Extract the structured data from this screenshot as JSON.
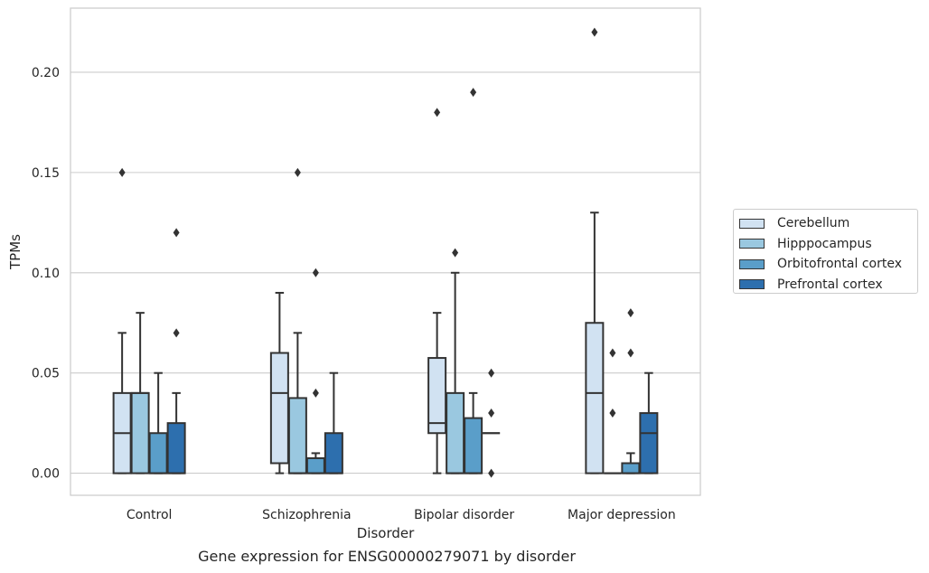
{
  "caption": "Gene expression for ENSG00000279071 by disorder",
  "chart_data": {
    "type": "box",
    "xlabel": "Disorder",
    "ylabel": "TPMs",
    "ylim": [
      -0.011,
      0.232
    ],
    "yticks": [
      "0.00",
      "0.05",
      "0.10",
      "0.15",
      "0.20"
    ],
    "ytick_values": [
      0.0,
      0.05,
      0.1,
      0.15,
      0.2
    ],
    "grid": "horizontal",
    "legend_position": "right",
    "categories": [
      "Control",
      "Schizophrenia",
      "Bipolar disorder",
      "Major depression"
    ],
    "series": [
      {
        "name": "Cerebellum",
        "color": "#d1e2f2",
        "boxes": [
          {
            "whislo": 0.0,
            "q1": 0.0,
            "med": 0.02,
            "q3": 0.04,
            "whishi": 0.07,
            "fliers": [
              0.15
            ]
          },
          {
            "whislo": 0.0,
            "q1": 0.005,
            "med": 0.04,
            "q3": 0.06,
            "whishi": 0.09,
            "fliers": []
          },
          {
            "whislo": 0.0,
            "q1": 0.02,
            "med": 0.025,
            "q3": 0.0575,
            "whishi": 0.08,
            "fliers": [
              0.18
            ]
          },
          {
            "whislo": 0.0,
            "q1": 0.0,
            "med": 0.04,
            "q3": 0.075,
            "whishi": 0.13,
            "fliers": [
              0.22
            ]
          }
        ]
      },
      {
        "name": "Hipppocampus",
        "color": "#9ac8e0",
        "boxes": [
          {
            "whislo": 0.0,
            "q1": 0.0,
            "med": 0.04,
            "q3": 0.04,
            "whishi": 0.08,
            "fliers": []
          },
          {
            "whislo": 0.0,
            "q1": 0.0,
            "med": 0.0,
            "q3": 0.0375,
            "whishi": 0.07,
            "fliers": [
              0.15
            ]
          },
          {
            "whislo": 0.0,
            "q1": 0.0,
            "med": 0.0,
            "q3": 0.04,
            "whishi": 0.1,
            "fliers": [
              0.11
            ]
          },
          {
            "whislo": 0.0,
            "q1": 0.0,
            "med": 0.0,
            "q3": 0.0,
            "whishi": 0.0,
            "fliers": [
              0.06,
              0.03
            ]
          }
        ]
      },
      {
        "name": "Orbitofrontal cortex",
        "color": "#5a9ec9",
        "boxes": [
          {
            "whislo": 0.0,
            "q1": 0.0,
            "med": 0.0,
            "q3": 0.02,
            "whishi": 0.05,
            "fliers": []
          },
          {
            "whislo": 0.0,
            "q1": 0.0,
            "med": 0.0,
            "q3": 0.0075,
            "whishi": 0.01,
            "fliers": [
              0.1,
              0.04
            ]
          },
          {
            "whislo": 0.0,
            "q1": 0.0,
            "med": 0.0,
            "q3": 0.0275,
            "whishi": 0.04,
            "fliers": [
              0.19
            ]
          },
          {
            "whislo": 0.0,
            "q1": 0.0,
            "med": 0.0,
            "q3": 0.005,
            "whishi": 0.01,
            "fliers": [
              0.08,
              0.06
            ]
          }
        ]
      },
      {
        "name": "Prefrontal cortex",
        "color": "#2d6fae",
        "boxes": [
          {
            "whislo": 0.0,
            "q1": 0.0,
            "med": 0.0,
            "q3": 0.025,
            "whishi": 0.04,
            "fliers": [
              0.12,
              0.07
            ]
          },
          {
            "whislo": 0.0,
            "q1": 0.0,
            "med": 0.0,
            "q3": 0.02,
            "whishi": 0.05,
            "fliers": []
          },
          {
            "whislo": 0.02,
            "q1": 0.02,
            "med": 0.02,
            "q3": 0.02,
            "whishi": 0.02,
            "fliers": [
              0.05,
              0.03,
              0.0
            ]
          },
          {
            "whislo": 0.0,
            "q1": 0.0,
            "med": 0.02,
            "q3": 0.03,
            "whishi": 0.05,
            "fliers": []
          }
        ]
      }
    ]
  }
}
